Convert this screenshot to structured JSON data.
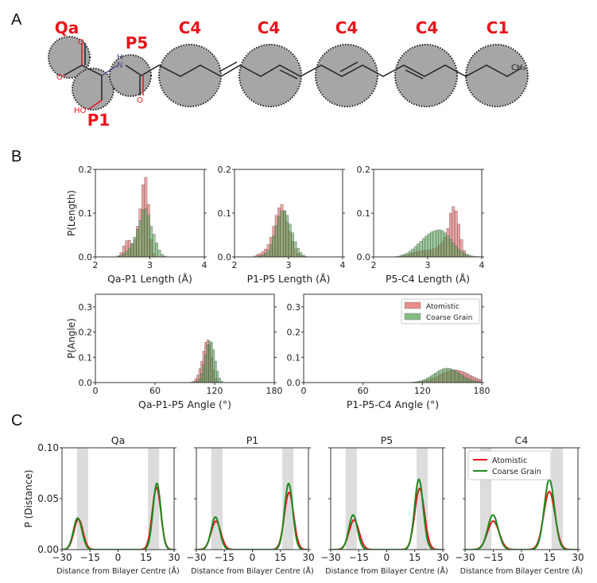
{
  "panels": {
    "A": "A",
    "B": "B",
    "C": "C"
  },
  "molecule": {
    "beads": [
      {
        "label": "Qa"
      },
      {
        "label": "P1"
      },
      {
        "label": "P5"
      },
      {
        "label": "C4"
      },
      {
        "label": "C4"
      },
      {
        "label": "C4"
      },
      {
        "label": "C4"
      },
      {
        "label": "C1"
      }
    ],
    "atoms": {
      "o_top": "O",
      "o_minus": "O⁻",
      "n": "N",
      "h": "H",
      "o_amide": "O",
      "ho": "HO",
      "ch3": "CH₃"
    },
    "label_color": "#e8141c",
    "bead_fill": "#a6a6a6"
  },
  "colors": {
    "atomistic": "#e8141c",
    "coarse_grain": "#1f8a1f",
    "hist_atomistic_fill": "#e06666",
    "hist_cg_fill": "#5aa55a",
    "membrane_band": "#dcdcdc"
  },
  "chart_data": [
    {
      "id": "B1",
      "type": "bar",
      "title": "",
      "xlabel": "Qa-P1 Length (Å)",
      "ylabel": "P(Length)",
      "xlim": [
        2,
        4
      ],
      "ylim": [
        0,
        0.2
      ],
      "xticks": [
        2,
        3,
        4
      ],
      "yticks": [
        0.0,
        0.1,
        0.2
      ],
      "ytick_labels": [
        "0.0",
        "0.1",
        "0.2"
      ],
      "bin_width": 0.05,
      "series": [
        {
          "name": "Atomistic",
          "bins": [
            2.4,
            2.45,
            2.5,
            2.55,
            2.6,
            2.65,
            2.7,
            2.75,
            2.8,
            2.85,
            2.9,
            2.95,
            3.0,
            3.05,
            3.1
          ],
          "values": [
            0.002,
            0.01,
            0.025,
            0.037,
            0.038,
            0.03,
            0.04,
            0.07,
            0.11,
            0.165,
            0.182,
            0.12,
            0.04,
            0.008,
            0.001
          ]
        },
        {
          "name": "Coarse Grain",
          "bins": [
            2.4,
            2.45,
            2.5,
            2.55,
            2.6,
            2.65,
            2.7,
            2.75,
            2.8,
            2.85,
            2.9,
            2.95,
            3.0,
            3.05,
            3.1,
            3.15,
            3.2,
            3.25
          ],
          "values": [
            0.002,
            0.004,
            0.008,
            0.013,
            0.02,
            0.03,
            0.045,
            0.063,
            0.083,
            0.108,
            0.11,
            0.095,
            0.07,
            0.052,
            0.032,
            0.016,
            0.006,
            0.002
          ]
        }
      ]
    },
    {
      "id": "B2",
      "type": "bar",
      "title": "",
      "xlabel": "P1-P5 Length (Å)",
      "ylabel": "",
      "xlim": [
        2,
        4
      ],
      "ylim": [
        0,
        0.2
      ],
      "xticks": [
        2,
        3,
        4
      ],
      "yticks": [
        0.0,
        0.1,
        0.2
      ],
      "ytick_labels": [
        "0.0",
        "0.1",
        "0.2"
      ],
      "bin_width": 0.05,
      "series": [
        {
          "name": "Atomistic",
          "bins": [
            2.35,
            2.4,
            2.45,
            2.5,
            2.55,
            2.6,
            2.65,
            2.7,
            2.75,
            2.8,
            2.85,
            2.9,
            2.95,
            3.0,
            3.05,
            3.1,
            3.15,
            3.2,
            3.25
          ],
          "values": [
            0.002,
            0.005,
            0.008,
            0.012,
            0.018,
            0.028,
            0.045,
            0.07,
            0.095,
            0.112,
            0.12,
            0.105,
            0.08,
            0.058,
            0.035,
            0.018,
            0.008,
            0.003,
            0.001
          ]
        },
        {
          "name": "Coarse Grain",
          "bins": [
            2.45,
            2.5,
            2.55,
            2.6,
            2.65,
            2.7,
            2.75,
            2.8,
            2.85,
            2.9,
            2.95,
            3.0,
            3.05,
            3.1,
            3.15,
            3.2,
            3.25,
            3.3
          ],
          "values": [
            0.002,
            0.004,
            0.008,
            0.015,
            0.028,
            0.048,
            0.072,
            0.092,
            0.105,
            0.106,
            0.095,
            0.075,
            0.055,
            0.035,
            0.02,
            0.01,
            0.004,
            0.001
          ]
        }
      ]
    },
    {
      "id": "B3",
      "type": "bar",
      "title": "",
      "xlabel": "P5-C4 Length (Å)",
      "ylabel": "",
      "xlim": [
        2,
        4
      ],
      "ylim": [
        0,
        0.2
      ],
      "xticks": [
        2,
        3,
        4
      ],
      "yticks": [
        0.0,
        0.1,
        0.2
      ],
      "ytick_labels": [
        "0.0",
        "0.1",
        "0.2"
      ],
      "bin_width": 0.05,
      "series": [
        {
          "name": "Atomistic",
          "bins": [
            2.5,
            2.55,
            2.6,
            2.65,
            2.7,
            2.75,
            2.8,
            2.85,
            2.9,
            2.95,
            3.0,
            3.05,
            3.1,
            3.15,
            3.2,
            3.25,
            3.3,
            3.35,
            3.4,
            3.45,
            3.5,
            3.55,
            3.6,
            3.65,
            3.7
          ],
          "values": [
            0.002,
            0.003,
            0.005,
            0.007,
            0.009,
            0.011,
            0.013,
            0.014,
            0.015,
            0.015,
            0.016,
            0.017,
            0.019,
            0.022,
            0.028,
            0.035,
            0.045,
            0.065,
            0.1,
            0.115,
            0.105,
            0.075,
            0.04,
            0.015,
            0.004
          ]
        },
        {
          "name": "Coarse Grain",
          "bins": [
            2.4,
            2.45,
            2.5,
            2.55,
            2.6,
            2.65,
            2.7,
            2.75,
            2.8,
            2.85,
            2.9,
            2.95,
            3.0,
            3.05,
            3.1,
            3.15,
            3.2,
            3.25,
            3.3,
            3.35,
            3.4,
            3.45,
            3.5,
            3.55,
            3.6,
            3.65,
            3.7,
            3.75,
            3.8,
            3.85,
            3.9
          ],
          "values": [
            0.001,
            0.002,
            0.004,
            0.006,
            0.009,
            0.013,
            0.018,
            0.024,
            0.03,
            0.036,
            0.042,
            0.048,
            0.053,
            0.057,
            0.06,
            0.061,
            0.062,
            0.06,
            0.055,
            0.048,
            0.04,
            0.032,
            0.025,
            0.018,
            0.013,
            0.009,
            0.006,
            0.004,
            0.002,
            0.001,
            0.001
          ]
        }
      ]
    },
    {
      "id": "B4",
      "type": "bar",
      "title": "",
      "xlabel": "Qa-P1-P5 Angle (°)",
      "ylabel": "P(Angle)",
      "xlim": [
        0,
        180
      ],
      "ylim": [
        0,
        0.35
      ],
      "xticks": [
        0,
        60,
        120,
        180
      ],
      "yticks": [
        0.0,
        0.1,
        0.2,
        0.3
      ],
      "ytick_labels": [
        "0.0",
        "0.1",
        "0.2",
        "0.3"
      ],
      "bin_width": 2,
      "series": [
        {
          "name": "Atomistic",
          "bins": [
            96,
            98,
            100,
            102,
            104,
            106,
            108,
            110,
            112,
            114,
            116,
            118,
            120,
            122
          ],
          "values": [
            0.002,
            0.006,
            0.015,
            0.03,
            0.055,
            0.085,
            0.125,
            0.16,
            0.17,
            0.15,
            0.1,
            0.05,
            0.015,
            0.003
          ]
        },
        {
          "name": "Coarse Grain",
          "bins": [
            100,
            102,
            104,
            106,
            108,
            110,
            112,
            114,
            116,
            118,
            120,
            122,
            124,
            126,
            128
          ],
          "values": [
            0.002,
            0.006,
            0.015,
            0.035,
            0.07,
            0.11,
            0.15,
            0.165,
            0.16,
            0.13,
            0.085,
            0.045,
            0.018,
            0.006,
            0.001
          ]
        }
      ]
    },
    {
      "id": "B5",
      "type": "bar",
      "title": "",
      "xlabel": "P1-P5-C4 Angle (°)",
      "ylabel": "",
      "xlim": [
        0,
        180
      ],
      "ylim": [
        0,
        0.35
      ],
      "xticks": [
        0,
        60,
        120,
        180
      ],
      "yticks": [
        0.0,
        0.1,
        0.2,
        0.3
      ],
      "ytick_labels": [
        "0.0",
        "0.1",
        "0.2",
        "0.3"
      ],
      "bin_width": 2,
      "legend": {
        "position": "top-right",
        "entries": [
          "Atomistic",
          "Coarse Grain"
        ]
      },
      "series": [
        {
          "name": "Atomistic",
          "dist": {
            "mean": 153,
            "sd": 15,
            "peak": 0.05,
            "min": 108,
            "max": 180
          }
        },
        {
          "name": "Coarse Grain",
          "dist": {
            "mean": 145,
            "sd": 13,
            "peak": 0.057,
            "min": 104,
            "max": 180
          }
        }
      ]
    },
    {
      "id": "C-Qa",
      "type": "line",
      "title": "Qa",
      "xlabel": "Distance from Bilayer Centre (Å)",
      "ylabel": "P (Distance)",
      "xlim": [
        -30,
        30
      ],
      "ylim": [
        0,
        0.1
      ],
      "xticks": [
        -30,
        -15,
        0,
        15,
        30
      ],
      "xtick_labels": [
        "−30",
        "−15",
        "0",
        "15",
        "30"
      ],
      "yticks": [
        0.0,
        0.05,
        0.1
      ],
      "ytick_labels": [
        "0.00",
        "0.05",
        "0.10"
      ],
      "bands": [
        [
          -22,
          -16
        ],
        [
          16,
          22
        ]
      ],
      "series": [
        {
          "name": "Atomistic",
          "peaks": [
            {
              "x": -21.2,
              "h": 0.03,
              "sd": 2.4
            },
            {
              "x": 20.6,
              "h": 0.061,
              "sd": 2.3
            }
          ]
        },
        {
          "name": "Coarse Grain",
          "peaks": [
            {
              "x": -21.6,
              "h": 0.031,
              "sd": 2.3
            },
            {
              "x": 20.8,
              "h": 0.065,
              "sd": 2.1
            }
          ]
        }
      ]
    },
    {
      "id": "C-P1",
      "type": "line",
      "title": "P1",
      "xlabel": "Distance from Bilayer Centre (Å)",
      "ylabel": "",
      "xlim": [
        -30,
        30
      ],
      "ylim": [
        0,
        0.1
      ],
      "xticks": [
        -30,
        -15,
        0,
        15,
        30
      ],
      "xtick_labels": [
        "−30",
        "−15",
        "0",
        "15",
        "30"
      ],
      "yticks": [
        0.0,
        0.05,
        0.1
      ],
      "ytick_labels": [
        "",
        "",
        ""
      ],
      "bands": [
        [
          -22,
          -16
        ],
        [
          16,
          22
        ]
      ],
      "series": [
        {
          "name": "Atomistic",
          "peaks": [
            {
              "x": -19.5,
              "h": 0.028,
              "sd": 2.6
            },
            {
              "x": 19.6,
              "h": 0.056,
              "sd": 2.5
            }
          ]
        },
        {
          "name": "Coarse Grain",
          "peaks": [
            {
              "x": -19.8,
              "h": 0.032,
              "sd": 2.3
            },
            {
              "x": 19.4,
              "h": 0.065,
              "sd": 2.2
            }
          ]
        }
      ]
    },
    {
      "id": "C-P5",
      "type": "line",
      "title": "P5",
      "xlabel": "Distance from Bilayer Centre (Å)",
      "ylabel": "",
      "xlim": [
        -30,
        30
      ],
      "ylim": [
        0,
        0.1
      ],
      "xticks": [
        -30,
        -15,
        0,
        15,
        30
      ],
      "xtick_labels": [
        "−30",
        "−15",
        "0",
        "15",
        "30"
      ],
      "yticks": [
        0.0,
        0.05,
        0.1
      ],
      "ytick_labels": [
        "",
        "",
        ""
      ],
      "bands": [
        [
          -22,
          -16
        ],
        [
          16,
          22
        ]
      ],
      "series": [
        {
          "name": "Atomistic",
          "peaks": [
            {
              "x": -17.5,
              "h": 0.029,
              "sd": 2.7
            },
            {
              "x": 17.6,
              "h": 0.06,
              "sd": 2.6
            }
          ]
        },
        {
          "name": "Coarse Grain",
          "peaks": [
            {
              "x": -18.0,
              "h": 0.034,
              "sd": 2.3
            },
            {
              "x": 17.2,
              "h": 0.069,
              "sd": 2.3
            }
          ]
        }
      ]
    },
    {
      "id": "C-C4",
      "type": "line",
      "title": "C4",
      "xlabel": "Distance from Bilayer Centre (Å)",
      "ylabel": "",
      "xlim": [
        -30,
        30
      ],
      "ylim": [
        0,
        0.1
      ],
      "xticks": [
        -30,
        -15,
        0,
        15,
        30
      ],
      "xtick_labels": [
        "−30",
        "−15",
        "0",
        "15",
        "30"
      ],
      "yticks": [
        0.0,
        0.05,
        0.1
      ],
      "ytick_labels": [
        "",
        "",
        ""
      ],
      "bands": [
        [
          -22,
          -16
        ],
        [
          16,
          22
        ]
      ],
      "legend": {
        "position": "top-left",
        "entries": [
          "Atomistic",
          "Coarse Grain"
        ]
      },
      "series": [
        {
          "name": "Atomistic",
          "peaks": [
            {
              "x": -15.0,
              "h": 0.028,
              "sd": 3.1
            },
            {
              "x": 14.8,
              "h": 0.057,
              "sd": 3.0
            }
          ]
        },
        {
          "name": "Coarse Grain",
          "peaks": [
            {
              "x": -15.2,
              "h": 0.034,
              "sd": 2.8
            },
            {
              "x": 14.8,
              "h": 0.069,
              "sd": 2.7
            }
          ]
        }
      ]
    }
  ]
}
